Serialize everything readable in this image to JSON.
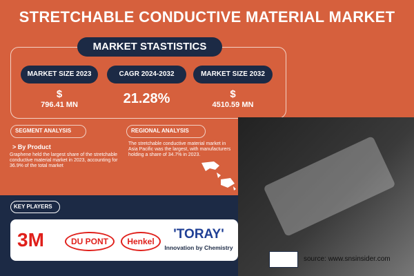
{
  "header": {
    "title": "STRETCHABLE CONDUCTIVE MATERIAL MARKET"
  },
  "market_statistics": {
    "title": "MARKET STASTISTICS",
    "items": [
      {
        "label": "MARKET SIZE 2023",
        "currency": "$",
        "value": "796.41 MN"
      },
      {
        "label": "CAGR 2024-2032",
        "value": "21.28%"
      },
      {
        "label": "MARKET SIZE 2032",
        "currency": "$",
        "value": "4510.59 MN"
      }
    ]
  },
  "segment_analysis": {
    "title": "SEGMENT ANALYSIS",
    "heading": "> By Product",
    "text": "Graphene held the largest share of the stretchable conductive material market in 2023, accounting for 36.9% of the total market"
  },
  "regional_analysis": {
    "title": "REGIONAL ANALYSIS",
    "text": "The stretchable conductive material market in Asia Pacific was the largest, with manufacturers holding a share of 34.7%  in 2023."
  },
  "key_players": {
    "title": "KEY PLAYERS",
    "logos": [
      "3M",
      "DU PONT",
      "Henkel",
      "'TORAY'"
    ],
    "tagline": "Innovation by Chemistry"
  },
  "footer": {
    "source": "source: www.snsinsider.com"
  }
}
